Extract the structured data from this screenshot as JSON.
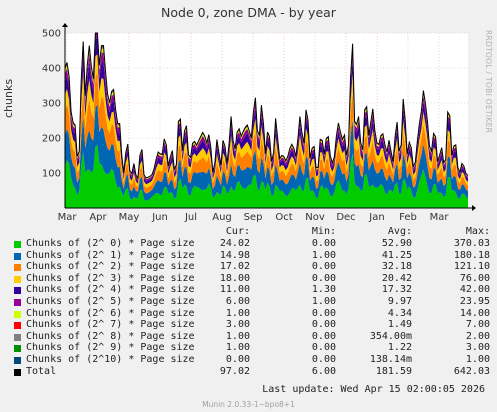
{
  "title": "Node 0, zone DMA - by year",
  "watermark": "RRDTOOL / TOBI OETIKER",
  "footer": "Munin 2.0.33-1~bpo8+1",
  "last_update": "Last update:  Wed Apr 15 02:00:05 2026",
  "legend_headers": {
    "cur": "Cur:",
    "min": "Min:",
    "avg": "Avg:",
    "max": "Max:"
  },
  "legend": [
    {
      "name": "Chunks of (2^ 0) * Page size",
      "color": "#00cc00",
      "cur": "24.02",
      "min": "0.00",
      "avg": "52.90",
      "max": "370.03"
    },
    {
      "name": "Chunks of (2^ 1) * Page size",
      "color": "#0066b3",
      "cur": "14.98",
      "min": "1.00",
      "avg": "41.25",
      "max": "180.18"
    },
    {
      "name": "Chunks of (2^ 2) * Page size",
      "color": "#ff8000",
      "cur": "17.02",
      "min": "0.00",
      "avg": "32.18",
      "max": "121.10"
    },
    {
      "name": "Chunks of (2^ 3) * Page size",
      "color": "#ffcc00",
      "cur": "18.00",
      "min": "0.00",
      "avg": "20.42",
      "max": "76.00"
    },
    {
      "name": "Chunks of (2^ 4) * Page size",
      "color": "#330099",
      "cur": "11.00",
      "min": "1.30",
      "avg": "17.32",
      "max": "42.00"
    },
    {
      "name": "Chunks of (2^ 5) * Page size",
      "color": "#990099",
      "cur": "6.00",
      "min": "1.00",
      "avg": "9.97",
      "max": "23.95"
    },
    {
      "name": "Chunks of (2^ 6) * Page size",
      "color": "#ccff00",
      "cur": "1.00",
      "min": "0.00",
      "avg": "4.34",
      "max": "14.00"
    },
    {
      "name": "Chunks of (2^ 7) * Page size",
      "color": "#ff0000",
      "cur": "3.00",
      "min": "0.00",
      "avg": "1.49",
      "max": "7.00"
    },
    {
      "name": "Chunks of (2^ 8) * Page size",
      "color": "#808080",
      "cur": "1.00",
      "min": "0.00",
      "avg": "354.00m",
      "max": "2.00"
    },
    {
      "name": "Chunks of (2^ 9) * Page size",
      "color": "#008f00",
      "cur": "1.00",
      "min": "0.00",
      "avg": "1.22",
      "max": "3.00"
    },
    {
      "name": "Chunks of (2^10) * Page size",
      "color": "#00487d",
      "cur": "0.00",
      "min": "0.00",
      "avg": "138.14m",
      "max": "1.00"
    },
    {
      "name": "Total",
      "color": "#000000",
      "cur": "97.02",
      "min": "6.00",
      "avg": "181.59",
      "max": "642.03"
    }
  ],
  "chart_data": {
    "type": "area",
    "title": "Node 0, zone DMA - by year",
    "ylabel": "chunks",
    "xlabel": "",
    "ylim": [
      0,
      500
    ],
    "yticks": [
      100,
      200,
      300,
      400,
      500
    ],
    "x_categories": [
      "Mar",
      "Apr",
      "May",
      "Jun",
      "Jul",
      "Aug",
      "Sep",
      "Oct",
      "Nov",
      "Dec",
      "Jan",
      "Feb",
      "Mar"
    ],
    "grid": true,
    "stacked": true,
    "series_names": [
      "Chunks of (2^ 0) * Page size",
      "Chunks of (2^ 1) * Page size",
      "Chunks of (2^ 2) * Page size",
      "Chunks of (2^ 3) * Page size",
      "Chunks of (2^ 4) * Page size",
      "Chunks of (2^ 5) * Page size",
      "Chunks of (2^ 6) * Page size",
      "Chunks of (2^ 7) * Page size",
      "Chunks of (2^ 8) * Page size",
      "Chunks of (2^ 9) * Page size",
      "Chunks of (2^10) * Page size"
    ],
    "total_profile": [
      [
        "Mar",
        400
      ],
      [
        "Mar",
        300
      ],
      [
        "Mar",
        150
      ],
      [
        "Mar",
        420
      ],
      [
        "Mar",
        470
      ],
      [
        "Apr",
        495
      ],
      [
        "Apr",
        490
      ],
      [
        "Apr",
        280
      ],
      [
        "Apr",
        330
      ],
      [
        "Apr",
        120
      ],
      [
        "May",
        150
      ],
      [
        "May",
        90
      ],
      [
        "May",
        140
      ],
      [
        "May",
        80
      ],
      [
        "May",
        110
      ],
      [
        "Jun",
        190
      ],
      [
        "Jun",
        150
      ],
      [
        "Jun",
        130
      ],
      [
        "Jun",
        220
      ],
      [
        "Jun",
        200
      ],
      [
        "Jul",
        160
      ],
      [
        "Jul",
        200
      ],
      [
        "Jul",
        230
      ],
      [
        "Jul",
        120
      ],
      [
        "Jul",
        180
      ],
      [
        "Aug",
        140
      ],
      [
        "Aug",
        230
      ],
      [
        "Aug",
        180
      ],
      [
        "Aug",
        250
      ],
      [
        "Aug",
        210
      ],
      [
        "Sep",
        280
      ],
      [
        "Sep",
        230
      ],
      [
        "Sep",
        160
      ],
      [
        "Sep",
        220
      ],
      [
        "Sep",
        120
      ],
      [
        "Oct",
        180
      ],
      [
        "Oct",
        150
      ],
      [
        "Oct",
        260
      ],
      [
        "Oct",
        210
      ],
      [
        "Oct",
        140
      ],
      [
        "Nov",
        160
      ],
      [
        "Nov",
        200
      ],
      [
        "Nov",
        130
      ],
      [
        "Nov",
        250
      ],
      [
        "Nov",
        160
      ],
      [
        "Dec",
        380
      ],
      [
        "Dec",
        200
      ],
      [
        "Dec",
        230
      ],
      [
        "Dec",
        280
      ],
      [
        "Dec",
        170
      ],
      [
        "Jan",
        210
      ],
      [
        "Jan",
        150
      ],
      [
        "Jan",
        200
      ],
      [
        "Jan",
        260
      ],
      [
        "Jan",
        140
      ],
      [
        "Feb",
        160
      ],
      [
        "Feb",
        330
      ],
      [
        "Feb",
        200
      ],
      [
        "Feb",
        170
      ],
      [
        "Feb",
        140
      ],
      [
        "Mar",
        230
      ],
      [
        "Mar",
        160
      ],
      [
        "Mar",
        110
      ],
      [
        "Mar",
        97
      ]
    ]
  }
}
